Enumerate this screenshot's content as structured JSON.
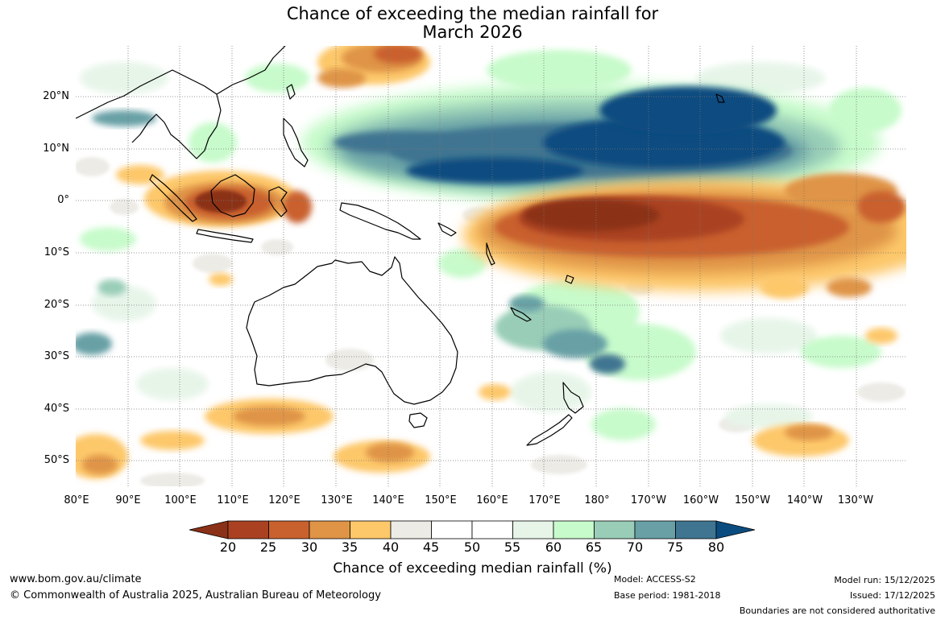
{
  "title": {
    "line1": "Chance of exceeding the median rainfall for",
    "line2": "March 2026"
  },
  "map": {
    "latitude_labels": [
      "20°N",
      "10°N",
      "0°",
      "10°S",
      "20°S",
      "30°S",
      "40°S",
      "50°S"
    ],
    "longitude_labels": [
      "80°E",
      "90°E",
      "100°E",
      "110°E",
      "120°E",
      "130°E",
      "140°E",
      "150°E",
      "160°E",
      "170°E",
      "180°",
      "170°W",
      "160°W",
      "150°W",
      "140°W",
      "130°W"
    ]
  },
  "colorbar": {
    "title": "Chance of exceeding median rainfall (%)",
    "ticks": [
      "20",
      "25",
      "30",
      "35",
      "40",
      "45",
      "50",
      "55",
      "60",
      "65",
      "70",
      "75",
      "80"
    ],
    "under_color": "#8b3118",
    "over_color": "#0b4c80",
    "colors": [
      "#aa4222",
      "#c9612e",
      "#df9446",
      "#fdc86a",
      "#ecebe6",
      "#ffffff",
      "#ffffff",
      "#e7f5e9",
      "#c7fbcb",
      "#99cdb7",
      "#68a0a6",
      "#3f7591"
    ]
  },
  "footer": {
    "website": "www.bom.gov.au/climate",
    "copyright": "© Commonwealth of Australia 2025, Australian Bureau of Meteorology",
    "model": "Model: ACCESS-S2",
    "base_period": "Base period: 1981-2018",
    "model_run": "Model run: 15/12/2025",
    "issued": "Issued: 17/12/2025",
    "disclaimer": "Boundaries are not considered authoritative"
  }
}
